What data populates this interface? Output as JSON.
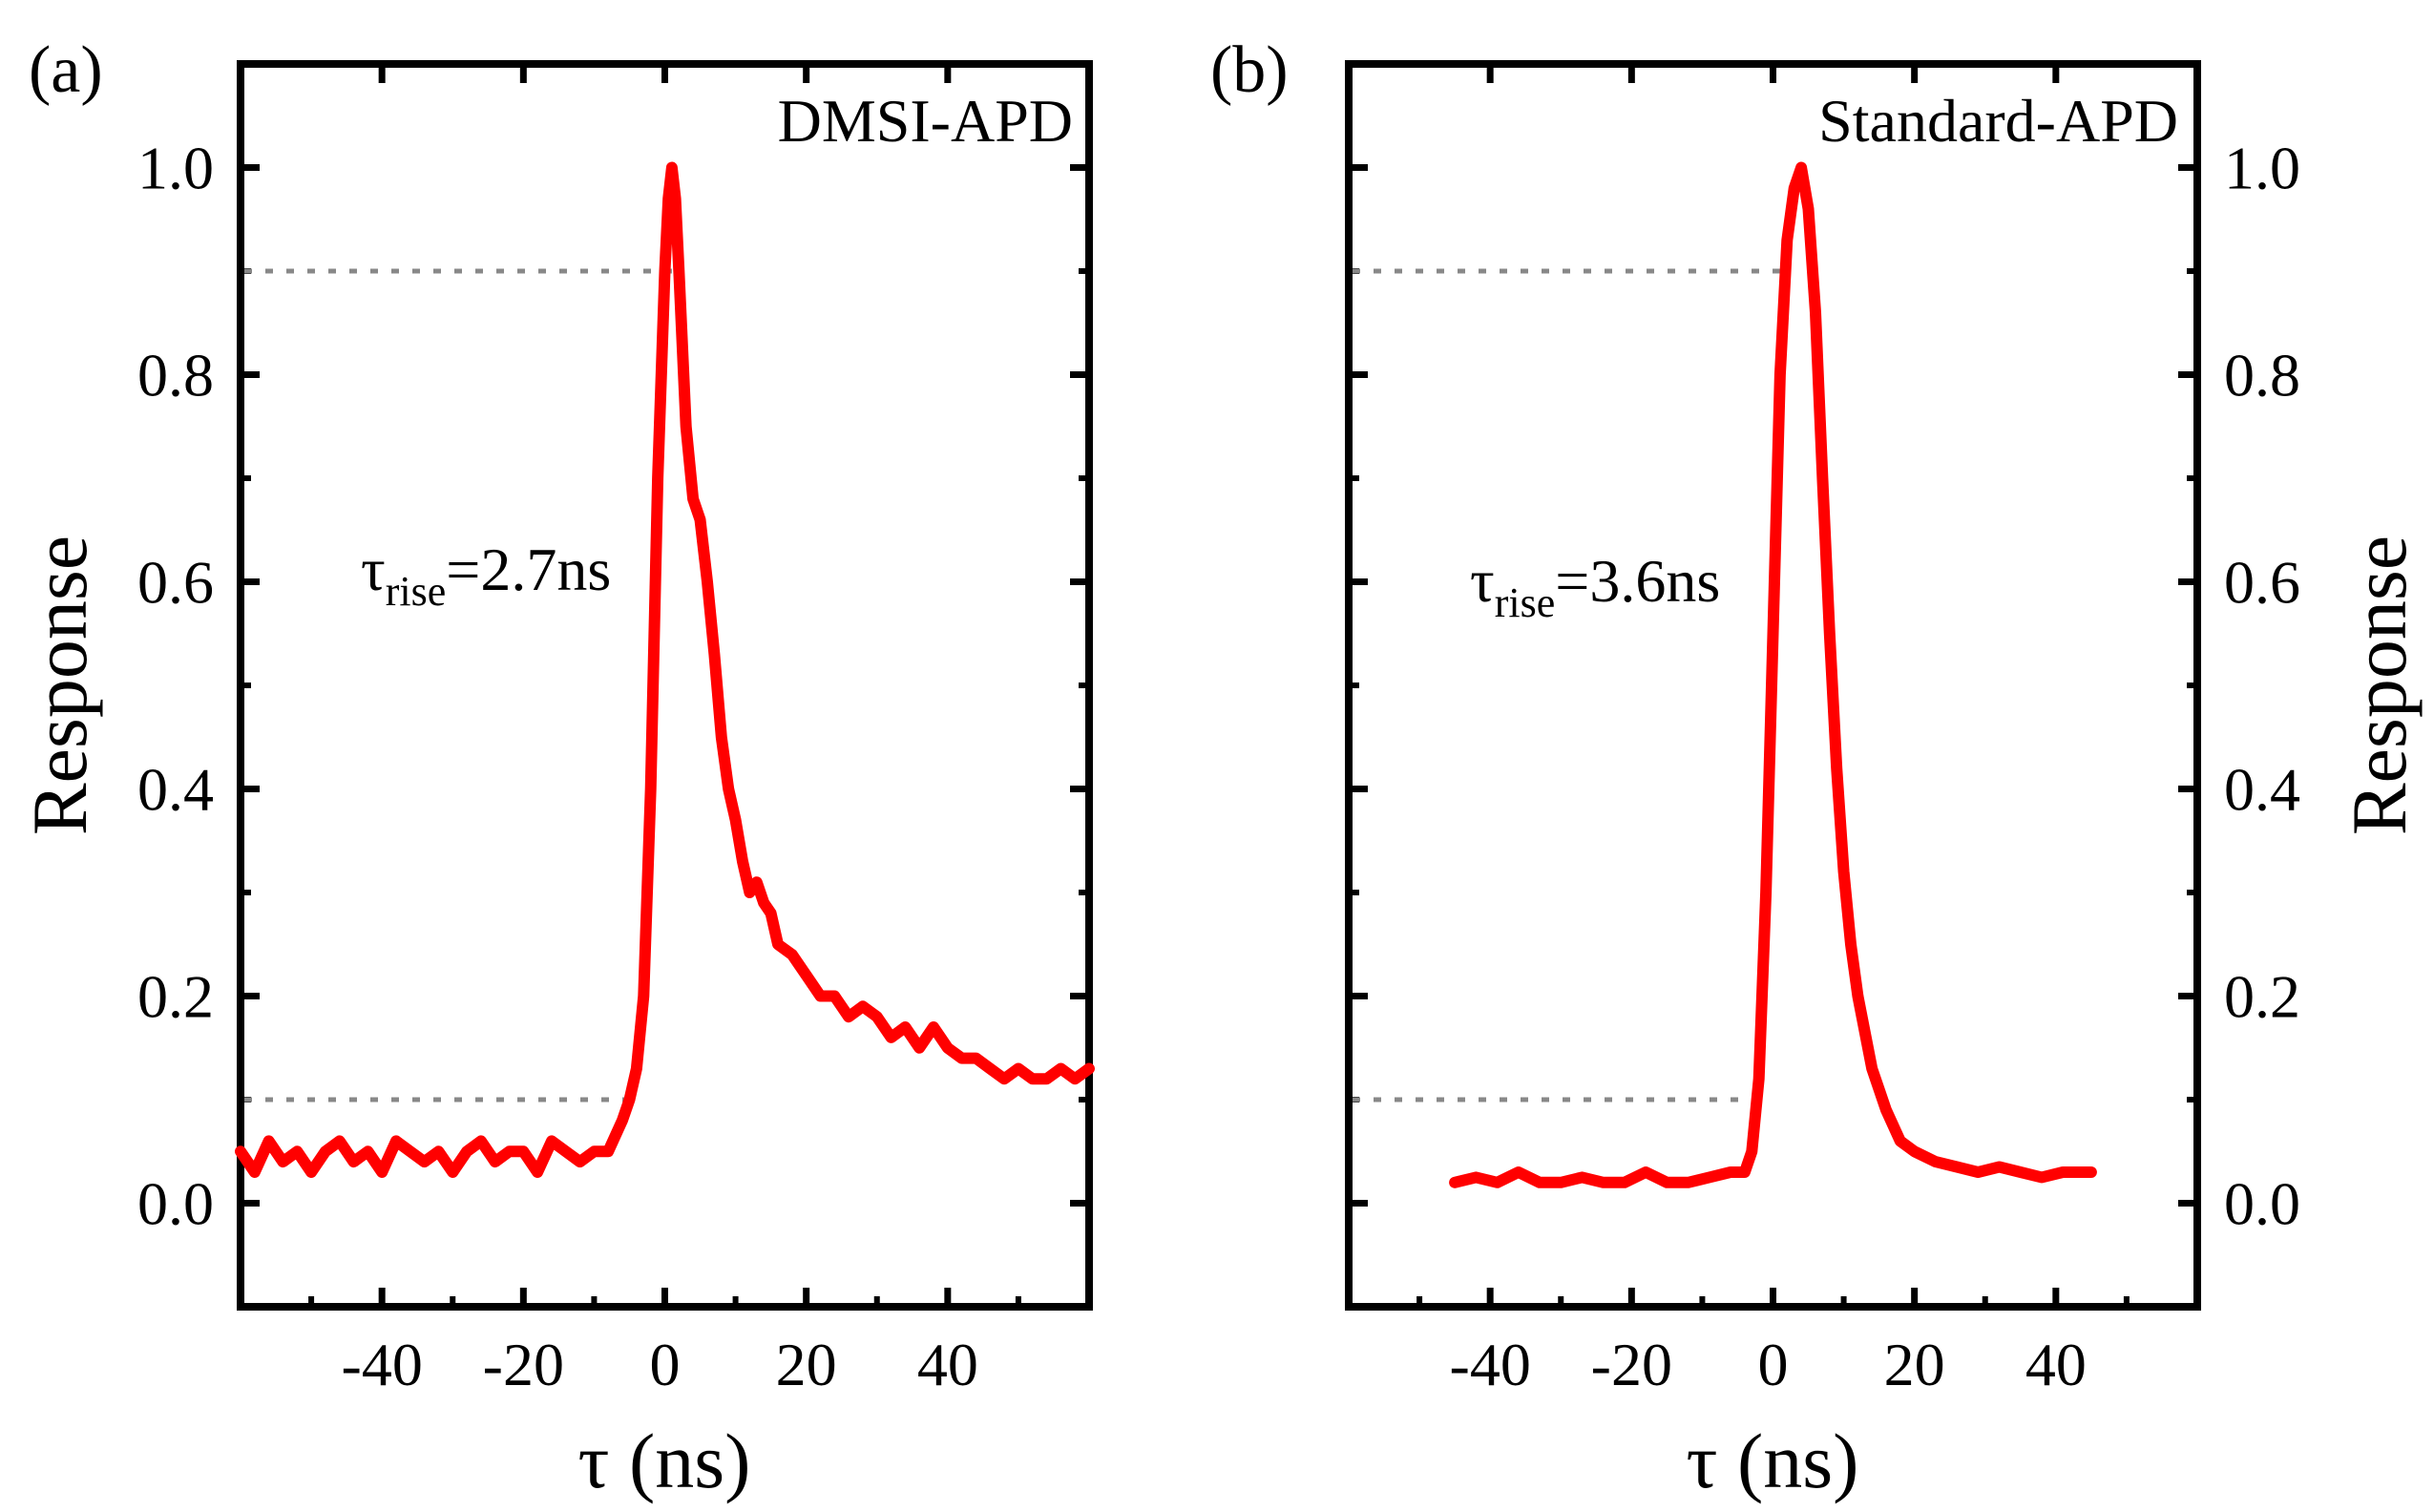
{
  "chart_data": [
    {
      "type": "line",
      "panel_label": "(a)",
      "legend": "DMSI-APD",
      "xlabel": "τ (ns)",
      "ylabel": "Response",
      "ylabel_side": "left",
      "xlim": [
        -60,
        60
      ],
      "ylim": [
        -0.1,
        1.1
      ],
      "xticks": [
        -40,
        -20,
        0,
        20,
        40
      ],
      "xtick_labels": [
        "-40",
        "-20",
        "0",
        "20",
        "40"
      ],
      "yticks": [
        0.0,
        0.2,
        0.4,
        0.6,
        0.8,
        1.0
      ],
      "ytick_labels": [
        "0.0",
        "0.2",
        "0.4",
        "0.6",
        "0.8",
        "1.0"
      ],
      "reference_lines": [
        {
          "y": 0.9,
          "x": [
            -60,
            1
          ],
          "style": "dotted"
        },
        {
          "y": 0.1,
          "x": [
            -60,
            -4
          ],
          "style": "dotted"
        }
      ],
      "annotation": {
        "symbol": "τ",
        "subscript": "rise",
        "text": "=2.7ns"
      },
      "series": [
        {
          "name": "DMSI-APD",
          "color": "#ff0000",
          "x": [
            -60,
            -58,
            -56,
            -54,
            -52,
            -50,
            -48,
            -46,
            -44,
            -42,
            -40,
            -38,
            -36,
            -34,
            -32,
            -30,
            -28,
            -26,
            -24,
            -22,
            -20,
            -18,
            -16,
            -14,
            -12,
            -10,
            -8,
            -6,
            -5,
            -4,
            -3,
            -2,
            -1,
            0,
            0.5,
            1,
            1.5,
            2,
            3,
            4,
            5,
            6,
            7,
            8,
            9,
            10,
            11,
            12,
            13,
            14,
            15,
            16,
            18,
            20,
            22,
            24,
            26,
            28,
            30,
            32,
            34,
            36,
            38,
            40,
            42,
            44,
            46,
            48,
            50,
            52,
            54,
            56,
            58,
            60
          ],
          "y": [
            0.05,
            0.03,
            0.06,
            0.04,
            0.05,
            0.03,
            0.05,
            0.06,
            0.04,
            0.05,
            0.03,
            0.06,
            0.05,
            0.04,
            0.05,
            0.03,
            0.05,
            0.06,
            0.04,
            0.05,
            0.05,
            0.03,
            0.06,
            0.05,
            0.04,
            0.05,
            0.05,
            0.08,
            0.1,
            0.13,
            0.2,
            0.4,
            0.7,
            0.9,
            0.97,
            1.0,
            0.97,
            0.9,
            0.75,
            0.68,
            0.66,
            0.6,
            0.53,
            0.45,
            0.4,
            0.37,
            0.33,
            0.3,
            0.31,
            0.29,
            0.28,
            0.25,
            0.24,
            0.22,
            0.2,
            0.2,
            0.18,
            0.19,
            0.18,
            0.16,
            0.17,
            0.15,
            0.17,
            0.15,
            0.14,
            0.14,
            0.13,
            0.12,
            0.13,
            0.12,
            0.12,
            0.13,
            0.12,
            0.13
          ]
        }
      ]
    },
    {
      "type": "line",
      "panel_label": "(b)",
      "legend": "Standard-APD",
      "xlabel": "τ (ns)",
      "ylabel": "Response",
      "ylabel_side": "right",
      "xlim": [
        -60,
        60
      ],
      "ylim": [
        -0.1,
        1.1
      ],
      "xticks": [
        -40,
        -20,
        0,
        20,
        40
      ],
      "xtick_labels": [
        "-40",
        "-20",
        "0",
        "20",
        "40"
      ],
      "yticks": [
        0.0,
        0.2,
        0.4,
        0.6,
        0.8,
        1.0
      ],
      "ytick_labels": [
        "0.0",
        "0.2",
        "0.4",
        "0.6",
        "0.8",
        "1.0"
      ],
      "reference_lines": [
        {
          "y": 0.9,
          "x": [
            -60,
            2
          ],
          "style": "dotted"
        },
        {
          "y": 0.1,
          "x": [
            -60,
            -2
          ],
          "style": "dotted"
        }
      ],
      "annotation": {
        "symbol": "τ",
        "subscript": "rise",
        "text": "=3.6ns"
      },
      "series": [
        {
          "name": "Standard-APD",
          "color": "#ff0000",
          "x": [
            -45,
            -42,
            -39,
            -36,
            -33,
            -30,
            -27,
            -24,
            -21,
            -18,
            -15,
            -12,
            -9,
            -6,
            -4,
            -3,
            -2,
            -1,
            0,
            1,
            2,
            3,
            4,
            5,
            6,
            7,
            8,
            9,
            10,
            11,
            12,
            14,
            16,
            18,
            20,
            23,
            26,
            29,
            32,
            35,
            38,
            41,
            45
          ],
          "y": [
            0.02,
            0.025,
            0.02,
            0.03,
            0.02,
            0.02,
            0.025,
            0.02,
            0.02,
            0.03,
            0.02,
            0.02,
            0.025,
            0.03,
            0.03,
            0.05,
            0.12,
            0.3,
            0.55,
            0.8,
            0.93,
            0.98,
            1.0,
            0.96,
            0.86,
            0.7,
            0.55,
            0.42,
            0.32,
            0.25,
            0.2,
            0.13,
            0.09,
            0.06,
            0.05,
            0.04,
            0.035,
            0.03,
            0.035,
            0.03,
            0.025,
            0.03,
            0.03
          ]
        }
      ]
    }
  ]
}
